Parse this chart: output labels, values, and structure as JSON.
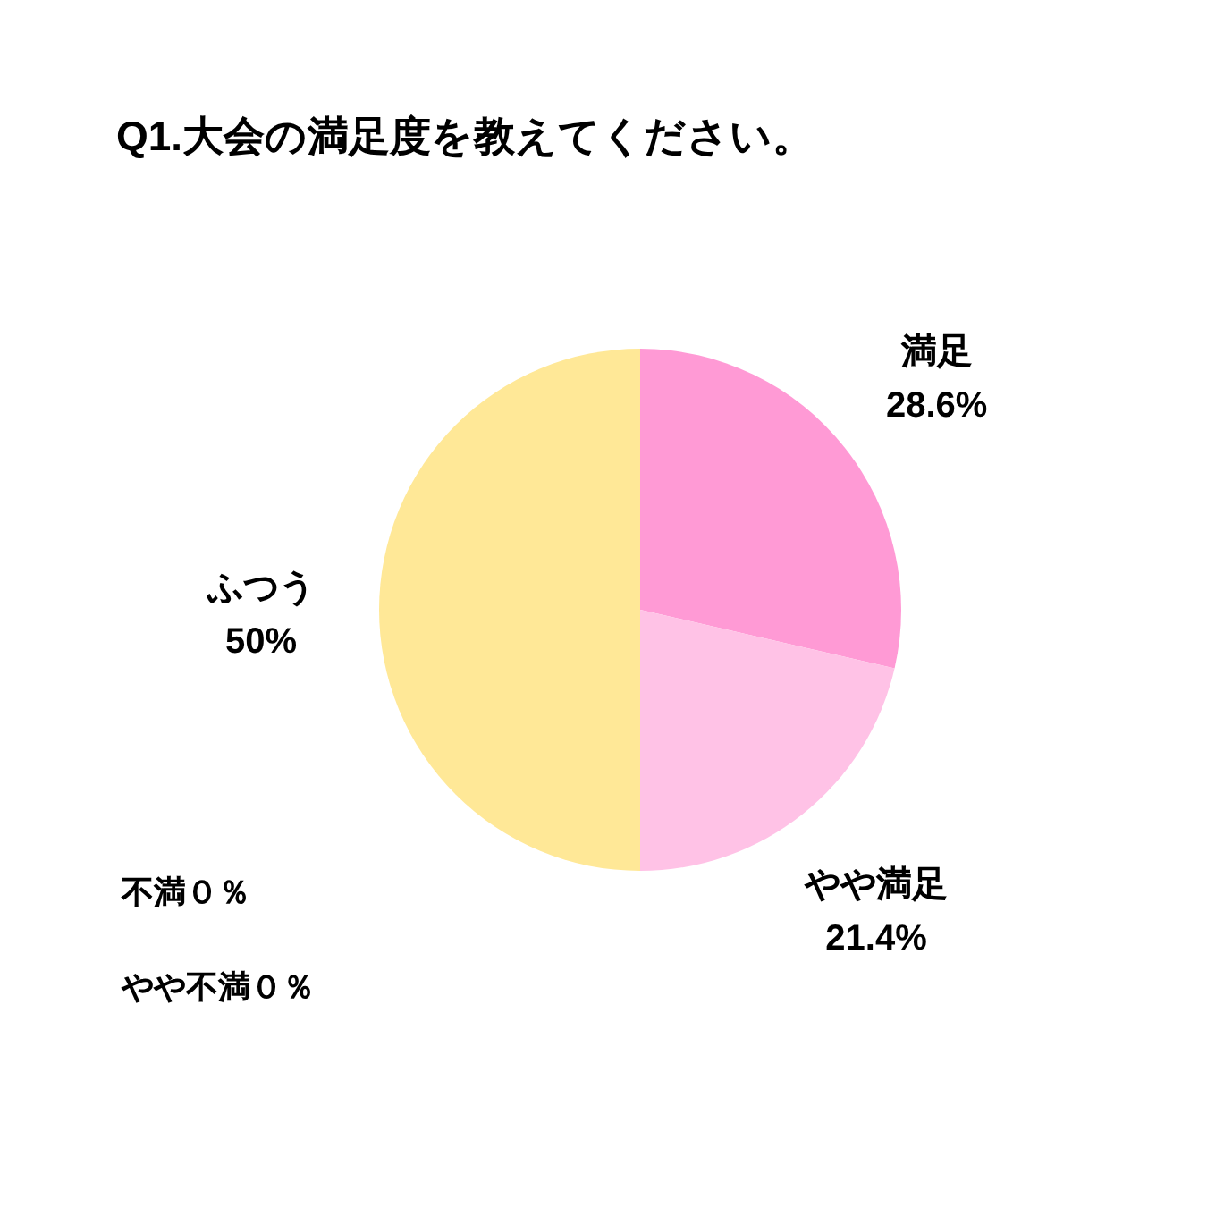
{
  "chart_data": {
    "type": "pie",
    "title": "Q1.大会の満足度を教えてください。",
    "categories": [
      "満足",
      "やや満足",
      "ふつう",
      "やや不満",
      "不満"
    ],
    "values": [
      28.6,
      21.4,
      50,
      0,
      0
    ],
    "colors": [
      "#ff9ad5",
      "#ffc2e6",
      "#ffe897",
      null,
      null
    ],
    "value_labels": [
      "28.6%",
      "21.4%",
      "50%",
      "０％",
      "０％"
    ]
  }
}
